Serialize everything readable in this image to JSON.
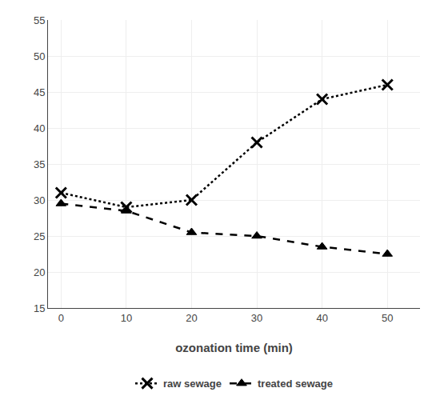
{
  "chart_data": {
    "type": "line",
    "xlabel": "ozonation time (min)",
    "x": [
      0,
      10,
      20,
      30,
      40,
      50
    ],
    "series": [
      {
        "name": "raw sewage",
        "color": "#000000",
        "values": [
          31,
          29,
          30,
          38,
          44,
          46
        ],
        "marker": "x",
        "line_style": "dotted"
      },
      {
        "name": "treated sewage",
        "color": "#000000",
        "values": [
          29.5,
          28.5,
          25.5,
          25,
          23.5,
          22.5
        ],
        "marker": "triangle-up",
        "line_style": "dashed"
      }
    ],
    "xlim": [
      -2,
      55
    ],
    "ylim": [
      15,
      55
    ],
    "xticks": [
      0,
      10,
      20,
      30,
      40,
      50
    ],
    "yticks": [
      15,
      20,
      25,
      30,
      35,
      40,
      45,
      50,
      55
    ],
    "grid": true,
    "legend": "bottom"
  }
}
